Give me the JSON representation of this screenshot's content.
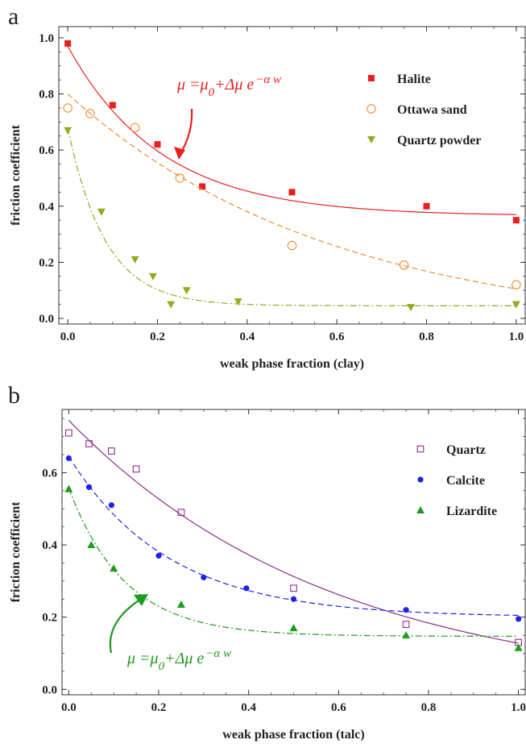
{
  "chart_data": [
    {
      "type": "scatter",
      "panel_label": "a",
      "xlabel": "weak phase fraction (clay)",
      "ylabel": "friction coefficient",
      "xlim": [
        -0.02,
        1.02
      ],
      "ylim": [
        -0.02,
        1.04
      ],
      "xticks": [
        "0.0",
        "0.2",
        "0.4",
        "0.6",
        "0.8",
        "1.0"
      ],
      "yticks": [
        "0.0",
        "0.2",
        "0.4",
        "0.6",
        "0.8",
        "1.0"
      ],
      "legend_position": "top-right",
      "annotation": {
        "text": "μ =μ0+Δμ e−α w",
        "color": "#e8201e"
      },
      "series": [
        {
          "name": "Halite",
          "marker": "square",
          "color": "#e8201e",
          "line": "solid",
          "x": [
            0.0,
            0.1,
            0.2,
            0.3,
            0.5,
            0.8,
            1.0
          ],
          "y": [
            0.98,
            0.76,
            0.62,
            0.47,
            0.45,
            0.4,
            0.35
          ],
          "fit": {
            "mu0": 0.365,
            "dmu": 0.605,
            "alpha": 4.8
          }
        },
        {
          "name": "Ottawa sand",
          "marker": "circle-open",
          "color": "#f08a30",
          "line": "dashed",
          "x": [
            0.0,
            0.05,
            0.15,
            0.25,
            0.5,
            0.75,
            1.0
          ],
          "y": [
            0.75,
            0.73,
            0.68,
            0.5,
            0.26,
            0.19,
            0.12
          ],
          "fit": {
            "mu0": -0.05,
            "dmu": 0.85,
            "alpha": 1.7
          }
        },
        {
          "name": "Quartz powder",
          "marker": "triangle-down",
          "color": "#9aa81e",
          "line": "dashdot",
          "x": [
            0.0,
            0.075,
            0.15,
            0.19,
            0.23,
            0.265,
            0.38,
            0.765,
            1.0
          ],
          "y": [
            0.67,
            0.38,
            0.21,
            0.15,
            0.05,
            0.1,
            0.06,
            0.04,
            0.05
          ],
          "fit": {
            "mu0": 0.045,
            "dmu": 0.635,
            "alpha": 12
          }
        }
      ]
    },
    {
      "type": "scatter",
      "panel_label": "b",
      "xlabel": "weak phase fraction (talc)",
      "ylabel": "friction coefficient",
      "xlim": [
        -0.015,
        1.015
      ],
      "ylim": [
        -0.015,
        0.775
      ],
      "xticks": [
        "0.0",
        "0.2",
        "0.4",
        "0.6",
        "0.8",
        "1.0"
      ],
      "yticks": [
        "0.0",
        "0.2",
        "0.4",
        "0.6"
      ],
      "legend_position": "top-right",
      "annotation": {
        "text": "μ =μ0+Δμ e−α w",
        "color": "#1e9a1e"
      },
      "series": [
        {
          "name": "Quartz",
          "marker": "square-open",
          "color": "#8b2e8b",
          "line": "solid",
          "x": [
            0.0,
            0.045,
            0.095,
            0.15,
            0.25,
            0.5,
            0.75,
            1.0
          ],
          "y": [
            0.71,
            0.68,
            0.66,
            0.61,
            0.49,
            0.28,
            0.18,
            0.13
          ],
          "fit": {
            "mu0": -0.01,
            "dmu": 0.755,
            "alpha": 1.7
          }
        },
        {
          "name": "Calcite",
          "marker": "circle",
          "color": "#1e22e8",
          "line": "dashed",
          "x": [
            0.0,
            0.045,
            0.095,
            0.2,
            0.3,
            0.395,
            0.5,
            0.75,
            1.0
          ],
          "y": [
            0.64,
            0.56,
            0.51,
            0.37,
            0.31,
            0.28,
            0.25,
            0.22,
            0.195
          ],
          "fit": {
            "mu0": 0.2,
            "dmu": 0.445,
            "alpha": 4.5
          }
        },
        {
          "name": "Lizardite",
          "marker": "triangle-up",
          "color": "#1e9a1e",
          "line": "dashdot",
          "x": [
            0.0,
            0.05,
            0.1,
            0.25,
            0.5,
            0.75,
            1.0
          ],
          "y": [
            0.555,
            0.4,
            0.335,
            0.235,
            0.17,
            0.15,
            0.115
          ],
          "fit": {
            "mu0": 0.147,
            "dmu": 0.41,
            "alpha": 8
          }
        }
      ]
    }
  ]
}
